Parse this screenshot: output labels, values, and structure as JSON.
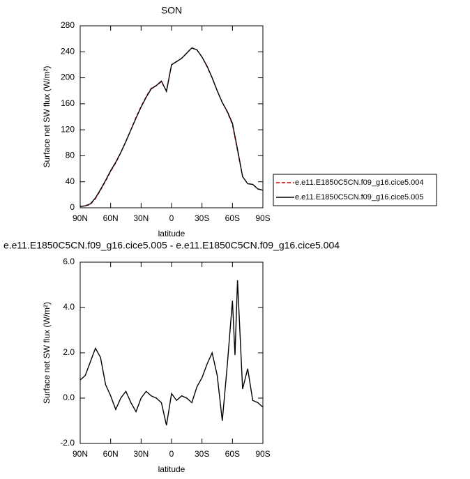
{
  "chart_data": [
    {
      "type": "line",
      "title": "SON",
      "xlabel": "latitude",
      "ylabel": "Surface net SW flux (W/m²)",
      "x": [
        90,
        85,
        80,
        75,
        70,
        65,
        60,
        55,
        50,
        45,
        40,
        35,
        30,
        25,
        20,
        15,
        10,
        5,
        0,
        -5,
        -10,
        -15,
        -20,
        -25,
        -30,
        -35,
        -40,
        -45,
        -50,
        -55,
        -60,
        -65,
        -70,
        -75,
        -80,
        -85,
        -90
      ],
      "series": [
        {
          "name": "e.e11.E1850C5CN.f09_g16.cice5.004",
          "color": "#cc0000",
          "dash": true,
          "values": [
            2,
            3,
            5,
            14,
            27,
            41,
            56,
            69,
            85,
            102,
            120,
            139,
            156,
            171,
            184,
            188,
            194,
            180,
            220,
            225,
            230,
            238,
            246,
            243,
            232,
            217,
            200,
            180,
            162,
            147,
            128,
            88,
            48,
            37,
            36,
            29,
            27
          ]
        },
        {
          "name": "e.e11.E1850C5CN.f09_g16.cice5.005",
          "color": "#000000",
          "dash": false,
          "values": [
            2,
            3,
            6,
            15,
            28,
            42,
            57,
            70,
            85,
            102,
            120,
            138,
            155,
            170,
            183,
            188,
            195,
            179,
            220,
            225,
            230,
            238,
            246,
            243,
            232,
            218,
            200,
            180,
            162,
            148,
            130,
            90,
            48,
            37,
            36,
            29,
            27
          ]
        }
      ],
      "xlim": [
        90,
        -90
      ],
      "xticks": [
        {
          "value": 90,
          "label": "90N"
        },
        {
          "value": 60,
          "label": "60N"
        },
        {
          "value": 30,
          "label": "30N"
        },
        0,
        {
          "value": -30,
          "label": "30S"
        },
        {
          "value": -60,
          "label": "60S"
        },
        {
          "value": -90,
          "label": "90S"
        }
      ],
      "ylim": [
        0,
        280
      ],
      "yticks": [
        0,
        40,
        80,
        120,
        160,
        200,
        240,
        280
      ],
      "legend": "right"
    },
    {
      "type": "line",
      "title": "e.e11.E1850C5CN.f09_g16.cice5.005 - e.e11.E1850C5CN.f09_g16.cice5.004",
      "xlabel": "latitude",
      "ylabel": "Surface net SW flux (W/m²)",
      "x": [
        90,
        85,
        80,
        75,
        70,
        65,
        60,
        55,
        50,
        45,
        40,
        35,
        30,
        25,
        20,
        15,
        10,
        5,
        0,
        -5,
        -10,
        -15,
        -20,
        -25,
        -30,
        -35,
        -40,
        -45,
        -50,
        -55,
        -60,
        -62.5,
        -65,
        -70,
        -75,
        -80,
        -85,
        -90
      ],
      "series": [
        {
          "name": "e.e11.E1850C5CN.f09_g16.cice5.005 - e.e11.E1850C5CN.f09_g16.cice5.004",
          "color": "#000000",
          "dash": false,
          "values": [
            0.8,
            1.0,
            1.6,
            2.2,
            1.8,
            0.6,
            0.1,
            -0.5,
            0.0,
            0.3,
            -0.2,
            -0.6,
            0.0,
            0.3,
            0.1,
            0.0,
            -0.2,
            -1.2,
            0.2,
            -0.1,
            0.1,
            0.0,
            -0.2,
            0.5,
            0.9,
            1.5,
            2.0,
            1.0,
            -1.0,
            1.5,
            4.3,
            1.9,
            5.2,
            0.4,
            1.3,
            -0.1,
            -0.2,
            -0.4
          ]
        }
      ],
      "xlim": [
        90,
        -90
      ],
      "xticks": [
        {
          "value": 90,
          "label": "90N"
        },
        {
          "value": 60,
          "label": "60N"
        },
        {
          "value": 30,
          "label": "30N"
        },
        0,
        {
          "value": -30,
          "label": "30S"
        },
        {
          "value": -60,
          "label": "60S"
        },
        {
          "value": -90,
          "label": "90S"
        }
      ],
      "ylim": [
        -2,
        6
      ],
      "yticks": [
        {
          "value": -2,
          "label": "-2.0"
        },
        {
          "value": 0,
          "label": "0.0"
        },
        {
          "value": 2,
          "label": "2.0"
        },
        {
          "value": 4,
          "label": "4.0"
        },
        {
          "value": 6,
          "label": "6.0"
        }
      ]
    }
  ]
}
